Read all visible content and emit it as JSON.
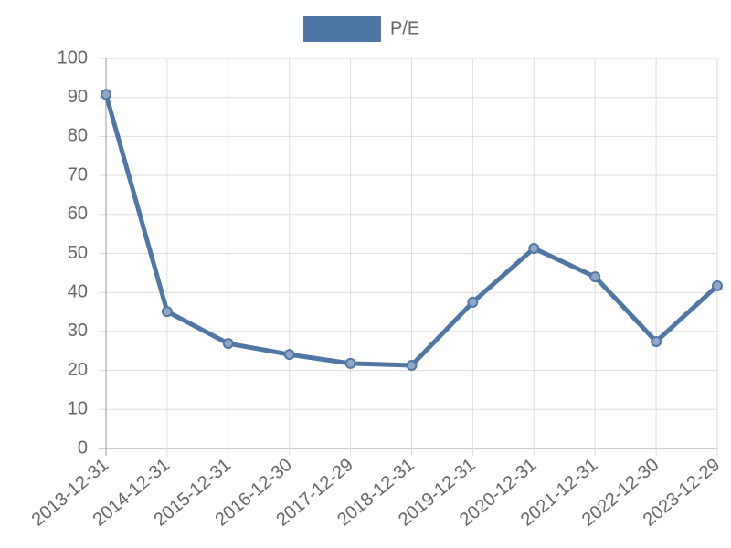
{
  "chart_data": {
    "type": "line",
    "categories": [
      "2013-12-31",
      "2014-12-31",
      "2015-12-31",
      "2016-12-30",
      "2017-12-29",
      "2018-12-31",
      "2019-12-31",
      "2020-12-31",
      "2021-12-31",
      "2022-12-30",
      "2023-12-29"
    ],
    "series": [
      {
        "name": "P/E",
        "color": "#4e77a5",
        "values": [
          90.8,
          35.1,
          26.9,
          24.1,
          21.8,
          21.3,
          37.5,
          51.3,
          44.0,
          27.4,
          41.7
        ]
      }
    ],
    "ylim": [
      0,
      100
    ],
    "yticks": [
      0,
      10,
      20,
      30,
      40,
      50,
      60,
      70,
      80,
      90,
      100
    ],
    "grid": true
  }
}
